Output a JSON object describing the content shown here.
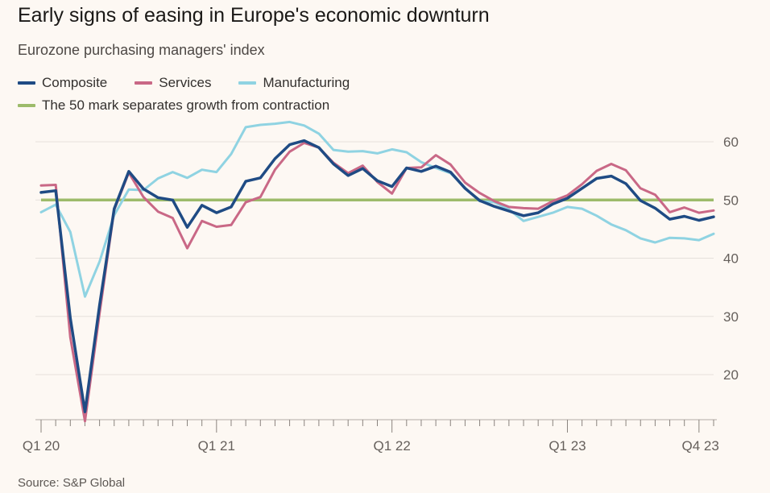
{
  "title": "Early signs of easing in Europe's economic downturn",
  "subtitle": "Eurozone purchasing managers' index",
  "legend": {
    "composite": "Composite",
    "services": "Services",
    "manufacturing": "Manufacturing",
    "threshold": "The 50 mark separates growth from contraction"
  },
  "source": "Source: S&P Global",
  "colors": {
    "composite": "#1f4b84",
    "services": "#c96886",
    "manufacturing": "#8fd3e2",
    "threshold": "#9dbb6a",
    "grid": "#e6e0db",
    "axis": "#66605c"
  },
  "chart_data": {
    "type": "line",
    "title": "Early signs of easing in Europe's economic downturn",
    "subtitle": "Eurozone purchasing managers' index",
    "xlabel": "",
    "ylabel": "",
    "x_tick_labels": [
      "Q1 20",
      "Q1 21",
      "Q1 22",
      "Q1 23",
      "Q4 23"
    ],
    "x_tick_months": [
      0,
      12,
      24,
      36,
      45
    ],
    "ylim": [
      12,
      63
    ],
    "y_ticks": [
      20,
      30,
      40,
      50,
      60
    ],
    "threshold": 50,
    "months": [
      "Jan 20",
      "Feb 20",
      "Mar 20",
      "Apr 20",
      "May 20",
      "Jun 20",
      "Jul 20",
      "Aug 20",
      "Sep 20",
      "Oct 20",
      "Nov 20",
      "Dec 20",
      "Jan 21",
      "Feb 21",
      "Mar 21",
      "Apr 21",
      "May 21",
      "Jun 21",
      "Jul 21",
      "Aug 21",
      "Sep 21",
      "Oct 21",
      "Nov 21",
      "Dec 21",
      "Jan 22",
      "Feb 22",
      "Mar 22",
      "Apr 22",
      "May 22",
      "Jun 22",
      "Jul 22",
      "Aug 22",
      "Sep 22",
      "Oct 22",
      "Nov 22",
      "Dec 22",
      "Jan 23",
      "Feb 23",
      "Mar 23",
      "Apr 23",
      "May 23",
      "Jun 23",
      "Jul 23",
      "Aug 23",
      "Sep 23",
      "Oct 23",
      "Nov 23"
    ],
    "series": [
      {
        "name": "Manufacturing",
        "key": "manufacturing",
        "values": [
          47.9,
          49.2,
          44.5,
          33.4,
          39.4,
          47.4,
          51.8,
          51.7,
          53.7,
          54.8,
          53.8,
          55.2,
          54.8,
          57.9,
          62.5,
          62.9,
          63.1,
          63.4,
          62.8,
          61.4,
          58.6,
          58.3,
          58.4,
          58.0,
          58.7,
          58.2,
          56.5,
          55.5,
          54.6,
          52.1,
          49.8,
          49.6,
          48.4,
          46.4,
          47.1,
          47.8,
          48.8,
          48.5,
          47.3,
          45.8,
          44.8,
          43.4,
          42.7,
          43.5,
          43.4,
          43.1,
          44.2
        ]
      },
      {
        "name": "Services",
        "key": "services",
        "values": [
          52.5,
          52.6,
          26.4,
          12.0,
          30.5,
          48.3,
          54.7,
          50.5,
          48.0,
          46.9,
          41.7,
          46.4,
          45.4,
          45.7,
          49.6,
          50.5,
          55.2,
          58.3,
          59.8,
          59.0,
          56.4,
          54.6,
          55.9,
          53.1,
          51.1,
          55.5,
          55.6,
          57.7,
          56.1,
          53.0,
          51.2,
          49.8,
          48.8,
          48.6,
          48.5,
          49.8,
          50.8,
          52.7,
          55.0,
          56.2,
          55.1,
          52.0,
          50.9,
          47.9,
          48.7,
          47.8,
          48.2
        ]
      },
      {
        "name": "Composite",
        "key": "composite",
        "values": [
          51.3,
          51.6,
          29.7,
          13.6,
          31.9,
          48.5,
          54.9,
          51.9,
          50.4,
          50.0,
          45.3,
          49.1,
          47.8,
          48.8,
          53.2,
          53.8,
          57.1,
          59.5,
          60.2,
          59.0,
          56.2,
          54.2,
          55.4,
          53.3,
          52.3,
          55.5,
          54.9,
          55.8,
          54.8,
          52.0,
          49.9,
          48.9,
          48.1,
          47.3,
          47.8,
          49.3,
          50.3,
          52.0,
          53.7,
          54.1,
          52.8,
          49.9,
          48.6,
          46.7,
          47.2,
          46.5,
          47.1
        ]
      }
    ]
  }
}
